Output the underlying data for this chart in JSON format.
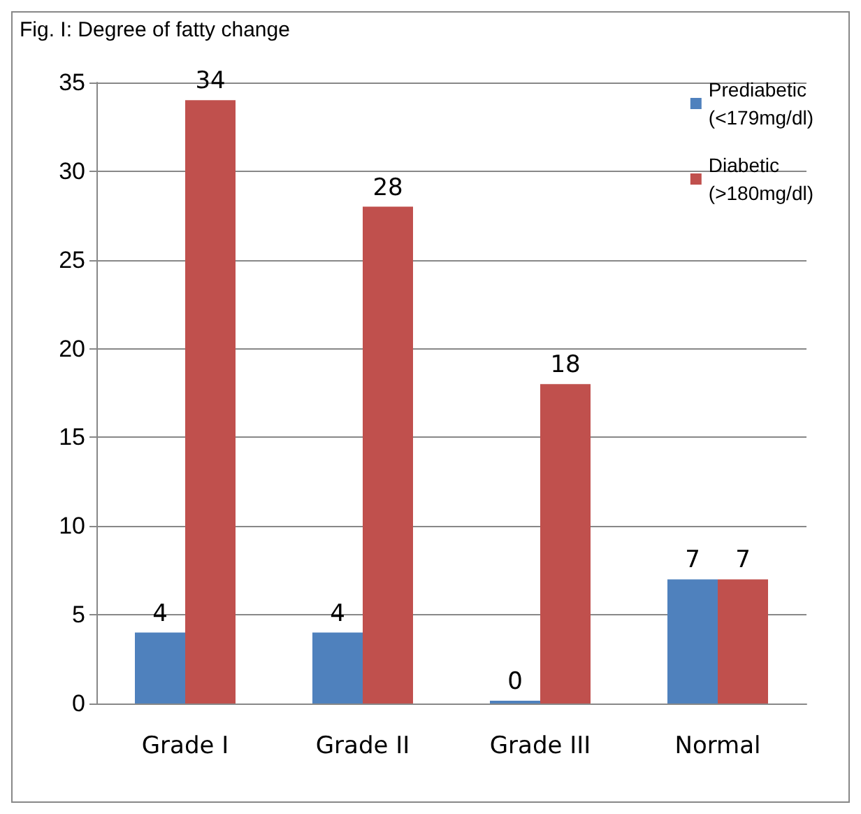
{
  "chart_data": {
    "type": "bar",
    "title": "Fig. I: Degree of fatty change",
    "categories": [
      "Grade I",
      "Grade II",
      "Grade III",
      "Normal"
    ],
    "series": [
      {
        "name": "Prediabetic (<179mg/dl)",
        "color": "#4f81bd",
        "values": [
          4,
          4,
          0,
          7
        ]
      },
      {
        "name": "Diabetic (>180mg/dl)",
        "color": "#c0504d",
        "values": [
          34,
          28,
          18,
          7
        ]
      }
    ],
    "ylim": [
      0,
      35
    ],
    "yticks": [
      0,
      5,
      10,
      15,
      20,
      25,
      30,
      35
    ],
    "grid": "y",
    "legend": "top right",
    "data_labels": true
  }
}
